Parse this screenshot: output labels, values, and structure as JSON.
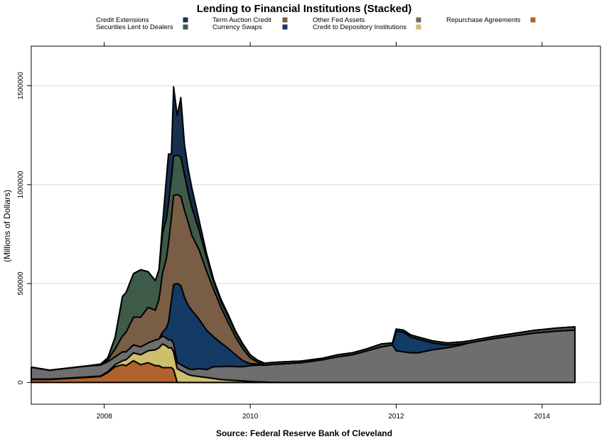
{
  "chart_data": {
    "type": "area",
    "stacked": true,
    "title": "Lending to Financial Institutions (Stacked)",
    "ylabel": "(Millions of Dollars)",
    "source": "Source: Federal Reserve Bank of Cleveland",
    "xlim": [
      2007.0,
      2014.8
    ],
    "ylim": [
      -110000,
      1700000
    ],
    "x_ticks": [
      2008,
      2010,
      2012,
      2014
    ],
    "y_ticks": [
      0,
      500000,
      1000000,
      1500000
    ],
    "grid": true,
    "legend_position": "top",
    "x": [
      2007.0,
      2007.25,
      2007.5,
      2007.75,
      2007.95,
      2008.05,
      2008.15,
      2008.25,
      2008.3,
      2008.4,
      2008.5,
      2008.6,
      2008.7,
      2008.75,
      2008.8,
      2008.85,
      2008.88,
      2008.92,
      2008.95,
      2009.0,
      2009.05,
      2009.1,
      2009.15,
      2009.2,
      2009.3,
      2009.4,
      2009.5,
      2009.6,
      2009.7,
      2009.8,
      2009.9,
      2010.0,
      2010.1,
      2010.2,
      2010.3,
      2010.5,
      2010.7,
      2010.9,
      2011.0,
      2011.2,
      2011.4,
      2011.6,
      2011.8,
      2011.95,
      2012.0,
      2012.1,
      2012.2,
      2012.3,
      2012.5,
      2012.7,
      2012.9,
      2013.0,
      2013.3,
      2013.6,
      2013.9,
      2014.2,
      2014.45
    ],
    "series": [
      {
        "name": "Repurchase Agreements",
        "color": "#b0622c",
        "values": [
          15000,
          15000,
          20000,
          25000,
          30000,
          50000,
          80000,
          90000,
          85000,
          110000,
          90000,
          100000,
          85000,
          85000,
          75000,
          75000,
          75000,
          75000,
          65000,
          0,
          0,
          0,
          0,
          0,
          0,
          0,
          0,
          0,
          0,
          0,
          0,
          0,
          0,
          0,
          0,
          0,
          0,
          0,
          0,
          0,
          0,
          0,
          0,
          0,
          0,
          0,
          0,
          0,
          0,
          0,
          0,
          0,
          0,
          0,
          0,
          0,
          0
        ]
      },
      {
        "name": "Credit to Depository Institutions",
        "color": "#cfbe6c",
        "values": [
          2000,
          2000,
          2000,
          3000,
          3000,
          5000,
          10000,
          20000,
          30000,
          40000,
          50000,
          60000,
          80000,
          90000,
          120000,
          110000,
          100000,
          100000,
          90000,
          70000,
          60000,
          50000,
          40000,
          35000,
          30000,
          25000,
          20000,
          15000,
          12000,
          10000,
          8000,
          5000,
          3000,
          2000,
          1000,
          0,
          0,
          0,
          0,
          0,
          0,
          0,
          0,
          0,
          0,
          0,
          0,
          0,
          0,
          0,
          0,
          0,
          0,
          0,
          0,
          0,
          0
        ]
      },
      {
        "name": "Other Fed Assets",
        "color": "#6e6e6e",
        "values": [
          60000,
          45000,
          50000,
          55000,
          55000,
          50000,
          40000,
          45000,
          40000,
          40000,
          40000,
          40000,
          50000,
          45000,
          40000,
          40000,
          40000,
          40000,
          40000,
          30000,
          30000,
          30000,
          30000,
          30000,
          40000,
          40000,
          60000,
          65000,
          70000,
          70000,
          72000,
          80000,
          85000,
          85000,
          90000,
          95000,
          100000,
          110000,
          115000,
          130000,
          140000,
          160000,
          180000,
          190000,
          160000,
          155000,
          150000,
          150000,
          165000,
          175000,
          190000,
          200000,
          220000,
          235000,
          250000,
          260000,
          265000
        ]
      },
      {
        "name": "Currency Swaps",
        "color": "#143a66",
        "values": [
          0,
          0,
          0,
          0,
          0,
          0,
          0,
          0,
          0,
          0,
          0,
          0,
          0,
          0,
          20000,
          50000,
          90000,
          200000,
          300000,
          400000,
          400000,
          350000,
          320000,
          300000,
          250000,
          200000,
          150000,
          120000,
          90000,
          60000,
          30000,
          10000,
          5000,
          0,
          0,
          0,
          0,
          0,
          0,
          0,
          0,
          0,
          0,
          0,
          100000,
          100000,
          80000,
          70000,
          35000,
          15000,
          5000,
          0,
          0,
          0,
          0,
          0,
          0
        ]
      },
      {
        "name": "Term Auction Credit",
        "color": "#7a5d45",
        "values": [
          0,
          0,
          0,
          0,
          0,
          10000,
          40000,
          80000,
          100000,
          140000,
          150000,
          180000,
          150000,
          200000,
          300000,
          350000,
          400000,
          420000,
          450000,
          450000,
          450000,
          440000,
          420000,
          380000,
          350000,
          300000,
          240000,
          180000,
          130000,
          90000,
          60000,
          30000,
          10000,
          0,
          0,
          0,
          0,
          0,
          0,
          0,
          0,
          0,
          0,
          0,
          0,
          0,
          0,
          0,
          0,
          0,
          0,
          0,
          0,
          0,
          0,
          0,
          0
        ]
      },
      {
        "name": "Securities Lent to Dealers",
        "color": "#3e5a48",
        "values": [
          0,
          0,
          0,
          0,
          5000,
          10000,
          60000,
          200000,
          200000,
          220000,
          240000,
          180000,
          150000,
          150000,
          200000,
          200000,
          200000,
          200000,
          200000,
          200000,
          200000,
          180000,
          150000,
          140000,
          100000,
          70000,
          40000,
          30000,
          30000,
          25000,
          20000,
          15000,
          10000,
          10000,
          10000,
          10000,
          8000,
          8000,
          8000,
          10000,
          10000,
          10000,
          15000,
          10000,
          10000,
          10000,
          10000,
          10000,
          10000,
          10000,
          10000,
          10000,
          10000,
          12000,
          14000,
          15000,
          16000
        ]
      },
      {
        "name": "Credit Extensions",
        "color": "#17304f",
        "values": [
          0,
          0,
          0,
          0,
          0,
          0,
          0,
          0,
          0,
          0,
          0,
          0,
          0,
          0,
          50000,
          200000,
          250000,
          120000,
          350000,
          200000,
          300000,
          150000,
          120000,
          100000,
          50000,
          20000,
          10000,
          10000,
          10000,
          5000,
          5000,
          0,
          0,
          0,
          0,
          0,
          0,
          0,
          0,
          0,
          0,
          0,
          0,
          0,
          0,
          0,
          0,
          0,
          0,
          0,
          0,
          0,
          0,
          0,
          0,
          0,
          0
        ]
      }
    ],
    "legend": [
      {
        "label": "Credit Extensions",
        "color": "#17304f"
      },
      {
        "label": "Securities Lent to Dealers",
        "color": "#3e5a48"
      },
      {
        "label": "Term Auction Credit",
        "color": "#7a5d45"
      },
      {
        "label": "Currency Swaps",
        "color": "#143a66"
      },
      {
        "label": "Other Fed Assets",
        "color": "#6e6e6e"
      },
      {
        "label": "Credit to Depository Institutions",
        "color": "#cfbe6c"
      },
      {
        "label": "Repurchase Agreements",
        "color": "#b0622c"
      }
    ]
  }
}
